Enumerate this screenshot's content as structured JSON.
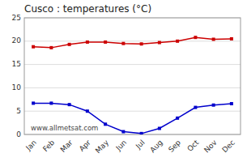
{
  "chart_data": {
    "type": "line",
    "title": "Cusco : temperatures (°C)",
    "categories": [
      "Jan",
      "Feb",
      "Mar",
      "Apr",
      "May",
      "Jun",
      "Jul",
      "Aug",
      "Sep",
      "Oct",
      "Nov",
      "Dec"
    ],
    "series": [
      {
        "color": "#cc0000",
        "marker": "square",
        "values": [
          18.8,
          18.6,
          19.3,
          19.8,
          19.8,
          19.5,
          19.4,
          19.7,
          20.0,
          20.8,
          20.4,
          20.5
        ]
      },
      {
        "color": "#0000cc",
        "marker": "square",
        "values": [
          6.7,
          6.7,
          6.4,
          5.0,
          2.2,
          0.6,
          0.2,
          1.3,
          3.5,
          5.8,
          6.3,
          6.6
        ]
      }
    ],
    "ylim": [
      0,
      25
    ],
    "yticks": [
      0,
      5,
      10,
      15,
      20,
      25
    ],
    "grid": true,
    "annotations": [
      "www.allmetsat.com"
    ]
  }
}
